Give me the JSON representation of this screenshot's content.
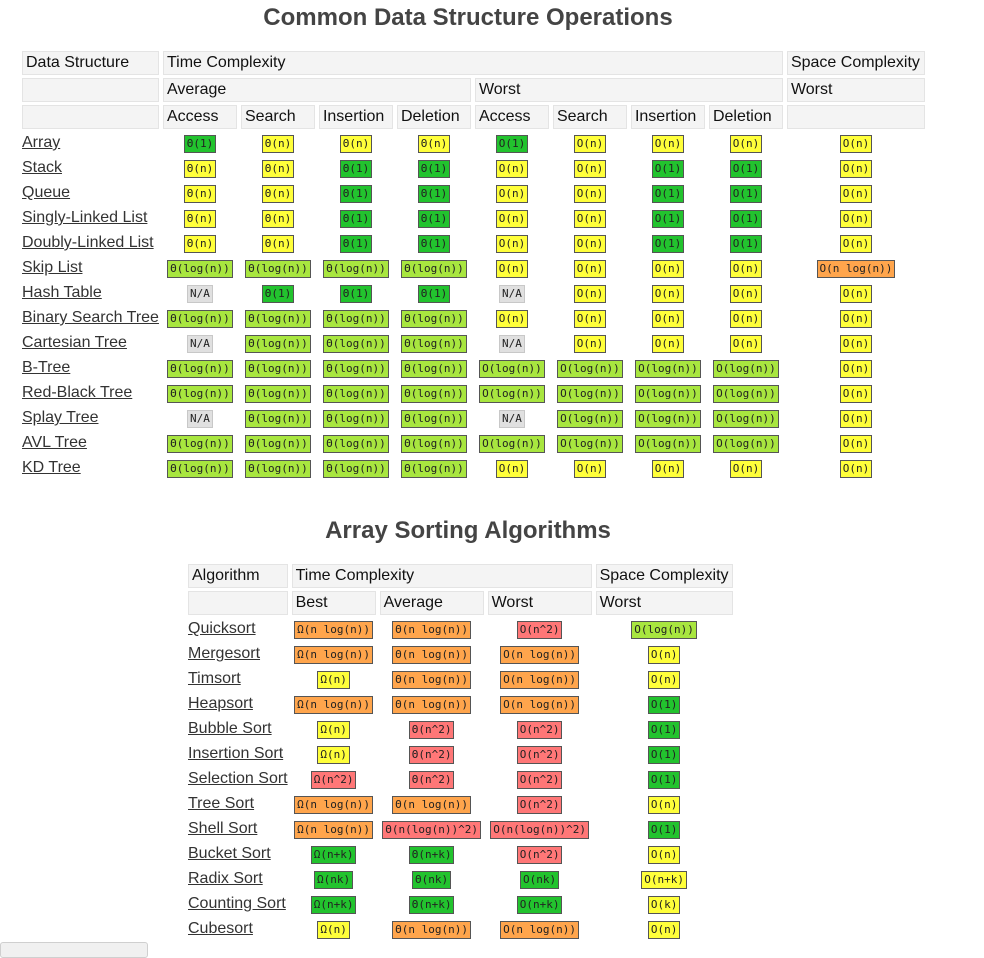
{
  "ops": {
    "title": "Common Data Structure Operations",
    "headers": {
      "row1": [
        "Data Structure",
        "Time Complexity",
        "Space Complexity"
      ],
      "row2": [
        "",
        "Average",
        "Worst",
        "Worst"
      ],
      "row3": [
        "",
        "Access",
        "Search",
        "Insertion",
        "Deletion",
        "Access",
        "Search",
        "Insertion",
        "Deletion",
        ""
      ]
    },
    "rows": [
      {
        "name": "Array",
        "cells": [
          [
            "Θ(1)",
            "g"
          ],
          [
            "Θ(n)",
            "y"
          ],
          [
            "Θ(n)",
            "y"
          ],
          [
            "Θ(n)",
            "y"
          ],
          [
            "O(1)",
            "g"
          ],
          [
            "O(n)",
            "y"
          ],
          [
            "O(n)",
            "y"
          ],
          [
            "O(n)",
            "y"
          ],
          [
            "O(n)",
            "y"
          ]
        ]
      },
      {
        "name": "Stack",
        "cells": [
          [
            "Θ(n)",
            "y"
          ],
          [
            "Θ(n)",
            "y"
          ],
          [
            "Θ(1)",
            "g"
          ],
          [
            "Θ(1)",
            "g"
          ],
          [
            "O(n)",
            "y"
          ],
          [
            "O(n)",
            "y"
          ],
          [
            "O(1)",
            "g"
          ],
          [
            "O(1)",
            "g"
          ],
          [
            "O(n)",
            "y"
          ]
        ]
      },
      {
        "name": "Queue",
        "cells": [
          [
            "Θ(n)",
            "y"
          ],
          [
            "Θ(n)",
            "y"
          ],
          [
            "Θ(1)",
            "g"
          ],
          [
            "Θ(1)",
            "g"
          ],
          [
            "O(n)",
            "y"
          ],
          [
            "O(n)",
            "y"
          ],
          [
            "O(1)",
            "g"
          ],
          [
            "O(1)",
            "g"
          ],
          [
            "O(n)",
            "y"
          ]
        ]
      },
      {
        "name": "Singly-Linked List",
        "cells": [
          [
            "Θ(n)",
            "y"
          ],
          [
            "Θ(n)",
            "y"
          ],
          [
            "Θ(1)",
            "g"
          ],
          [
            "Θ(1)",
            "g"
          ],
          [
            "O(n)",
            "y"
          ],
          [
            "O(n)",
            "y"
          ],
          [
            "O(1)",
            "g"
          ],
          [
            "O(1)",
            "g"
          ],
          [
            "O(n)",
            "y"
          ]
        ]
      },
      {
        "name": "Doubly-Linked List",
        "cells": [
          [
            "Θ(n)",
            "y"
          ],
          [
            "Θ(n)",
            "y"
          ],
          [
            "Θ(1)",
            "g"
          ],
          [
            "Θ(1)",
            "g"
          ],
          [
            "O(n)",
            "y"
          ],
          [
            "O(n)",
            "y"
          ],
          [
            "O(1)",
            "g"
          ],
          [
            "O(1)",
            "g"
          ],
          [
            "O(n)",
            "y"
          ]
        ]
      },
      {
        "name": "Skip List",
        "cells": [
          [
            "Θ(log(n))",
            "lg"
          ],
          [
            "Θ(log(n))",
            "lg"
          ],
          [
            "Θ(log(n))",
            "lg"
          ],
          [
            "Θ(log(n))",
            "lg"
          ],
          [
            "O(n)",
            "y"
          ],
          [
            "O(n)",
            "y"
          ],
          [
            "O(n)",
            "y"
          ],
          [
            "O(n)",
            "y"
          ],
          [
            "O(n log(n))",
            "o"
          ]
        ]
      },
      {
        "name": "Hash Table",
        "cells": [
          [
            "N/A",
            "n"
          ],
          [
            "Θ(1)",
            "g"
          ],
          [
            "Θ(1)",
            "g"
          ],
          [
            "Θ(1)",
            "g"
          ],
          [
            "N/A",
            "n"
          ],
          [
            "O(n)",
            "y"
          ],
          [
            "O(n)",
            "y"
          ],
          [
            "O(n)",
            "y"
          ],
          [
            "O(n)",
            "y"
          ]
        ]
      },
      {
        "name": "Binary Search Tree",
        "cells": [
          [
            "Θ(log(n))",
            "lg"
          ],
          [
            "Θ(log(n))",
            "lg"
          ],
          [
            "Θ(log(n))",
            "lg"
          ],
          [
            "Θ(log(n))",
            "lg"
          ],
          [
            "O(n)",
            "y"
          ],
          [
            "O(n)",
            "y"
          ],
          [
            "O(n)",
            "y"
          ],
          [
            "O(n)",
            "y"
          ],
          [
            "O(n)",
            "y"
          ]
        ]
      },
      {
        "name": "Cartesian Tree",
        "cells": [
          [
            "N/A",
            "n"
          ],
          [
            "Θ(log(n))",
            "lg"
          ],
          [
            "Θ(log(n))",
            "lg"
          ],
          [
            "Θ(log(n))",
            "lg"
          ],
          [
            "N/A",
            "n"
          ],
          [
            "O(n)",
            "y"
          ],
          [
            "O(n)",
            "y"
          ],
          [
            "O(n)",
            "y"
          ],
          [
            "O(n)",
            "y"
          ]
        ]
      },
      {
        "name": "B-Tree",
        "cells": [
          [
            "Θ(log(n))",
            "lg"
          ],
          [
            "Θ(log(n))",
            "lg"
          ],
          [
            "Θ(log(n))",
            "lg"
          ],
          [
            "Θ(log(n))",
            "lg"
          ],
          [
            "O(log(n))",
            "lg"
          ],
          [
            "O(log(n))",
            "lg"
          ],
          [
            "O(log(n))",
            "lg"
          ],
          [
            "O(log(n))",
            "lg"
          ],
          [
            "O(n)",
            "y"
          ]
        ]
      },
      {
        "name": "Red-Black Tree",
        "cells": [
          [
            "Θ(log(n))",
            "lg"
          ],
          [
            "Θ(log(n))",
            "lg"
          ],
          [
            "Θ(log(n))",
            "lg"
          ],
          [
            "Θ(log(n))",
            "lg"
          ],
          [
            "O(log(n))",
            "lg"
          ],
          [
            "O(log(n))",
            "lg"
          ],
          [
            "O(log(n))",
            "lg"
          ],
          [
            "O(log(n))",
            "lg"
          ],
          [
            "O(n)",
            "y"
          ]
        ]
      },
      {
        "name": "Splay Tree",
        "cells": [
          [
            "N/A",
            "n"
          ],
          [
            "Θ(log(n))",
            "lg"
          ],
          [
            "Θ(log(n))",
            "lg"
          ],
          [
            "Θ(log(n))",
            "lg"
          ],
          [
            "N/A",
            "n"
          ],
          [
            "O(log(n))",
            "lg"
          ],
          [
            "O(log(n))",
            "lg"
          ],
          [
            "O(log(n))",
            "lg"
          ],
          [
            "O(n)",
            "y"
          ]
        ]
      },
      {
        "name": "AVL Tree",
        "cells": [
          [
            "Θ(log(n))",
            "lg"
          ],
          [
            "Θ(log(n))",
            "lg"
          ],
          [
            "Θ(log(n))",
            "lg"
          ],
          [
            "Θ(log(n))",
            "lg"
          ],
          [
            "O(log(n))",
            "lg"
          ],
          [
            "O(log(n))",
            "lg"
          ],
          [
            "O(log(n))",
            "lg"
          ],
          [
            "O(log(n))",
            "lg"
          ],
          [
            "O(n)",
            "y"
          ]
        ]
      },
      {
        "name": "KD Tree",
        "cells": [
          [
            "Θ(log(n))",
            "lg"
          ],
          [
            "Θ(log(n))",
            "lg"
          ],
          [
            "Θ(log(n))",
            "lg"
          ],
          [
            "Θ(log(n))",
            "lg"
          ],
          [
            "O(n)",
            "y"
          ],
          [
            "O(n)",
            "y"
          ],
          [
            "O(n)",
            "y"
          ],
          [
            "O(n)",
            "y"
          ],
          [
            "O(n)",
            "y"
          ]
        ]
      }
    ]
  },
  "sorting": {
    "title": "Array Sorting Algorithms",
    "headers": {
      "row1": [
        "Algorithm",
        "Time Complexity",
        "Space Complexity"
      ],
      "row2": [
        "",
        "Best",
        "Average",
        "Worst",
        "Worst"
      ]
    },
    "rows": [
      {
        "name": "Quicksort",
        "cells": [
          [
            "Ω(n log(n))",
            "o"
          ],
          [
            "Θ(n log(n))",
            "o"
          ],
          [
            "O(n^2)",
            "r"
          ],
          [
            "O(log(n))",
            "lg"
          ]
        ]
      },
      {
        "name": "Mergesort",
        "cells": [
          [
            "Ω(n log(n))",
            "o"
          ],
          [
            "Θ(n log(n))",
            "o"
          ],
          [
            "O(n log(n))",
            "o"
          ],
          [
            "O(n)",
            "y"
          ]
        ]
      },
      {
        "name": "Timsort",
        "cells": [
          [
            "Ω(n)",
            "y"
          ],
          [
            "Θ(n log(n))",
            "o"
          ],
          [
            "O(n log(n))",
            "o"
          ],
          [
            "O(n)",
            "y"
          ]
        ]
      },
      {
        "name": "Heapsort",
        "cells": [
          [
            "Ω(n log(n))",
            "o"
          ],
          [
            "Θ(n log(n))",
            "o"
          ],
          [
            "O(n log(n))",
            "o"
          ],
          [
            "O(1)",
            "g"
          ]
        ]
      },
      {
        "name": "Bubble Sort",
        "cells": [
          [
            "Ω(n)",
            "y"
          ],
          [
            "Θ(n^2)",
            "r"
          ],
          [
            "O(n^2)",
            "r"
          ],
          [
            "O(1)",
            "g"
          ]
        ]
      },
      {
        "name": "Insertion Sort",
        "cells": [
          [
            "Ω(n)",
            "y"
          ],
          [
            "Θ(n^2)",
            "r"
          ],
          [
            "O(n^2)",
            "r"
          ],
          [
            "O(1)",
            "g"
          ]
        ]
      },
      {
        "name": "Selection Sort",
        "cells": [
          [
            "Ω(n^2)",
            "r"
          ],
          [
            "Θ(n^2)",
            "r"
          ],
          [
            "O(n^2)",
            "r"
          ],
          [
            "O(1)",
            "g"
          ]
        ]
      },
      {
        "name": "Tree Sort",
        "cells": [
          [
            "Ω(n log(n))",
            "o"
          ],
          [
            "Θ(n log(n))",
            "o"
          ],
          [
            "O(n^2)",
            "r"
          ],
          [
            "O(n)",
            "y"
          ]
        ]
      },
      {
        "name": "Shell Sort",
        "cells": [
          [
            "Ω(n log(n))",
            "o"
          ],
          [
            "Θ(n(log(n))^2)",
            "r"
          ],
          [
            "O(n(log(n))^2)",
            "r"
          ],
          [
            "O(1)",
            "g"
          ]
        ]
      },
      {
        "name": "Bucket Sort",
        "cells": [
          [
            "Ω(n+k)",
            "g"
          ],
          [
            "Θ(n+k)",
            "g"
          ],
          [
            "O(n^2)",
            "r"
          ],
          [
            "O(n)",
            "y"
          ]
        ]
      },
      {
        "name": "Radix Sort",
        "cells": [
          [
            "Ω(nk)",
            "g"
          ],
          [
            "Θ(nk)",
            "g"
          ],
          [
            "O(nk)",
            "g"
          ],
          [
            "O(n+k)",
            "y"
          ]
        ]
      },
      {
        "name": "Counting Sort",
        "cells": [
          [
            "Ω(n+k)",
            "g"
          ],
          [
            "Θ(n+k)",
            "g"
          ],
          [
            "O(n+k)",
            "g"
          ],
          [
            "O(k)",
            "y"
          ]
        ]
      },
      {
        "name": "Cubesort",
        "cells": [
          [
            "Ω(n)",
            "y"
          ],
          [
            "Θ(n log(n))",
            "o"
          ],
          [
            "O(n log(n))",
            "o"
          ],
          [
            "O(n)",
            "y"
          ]
        ]
      }
    ]
  }
}
